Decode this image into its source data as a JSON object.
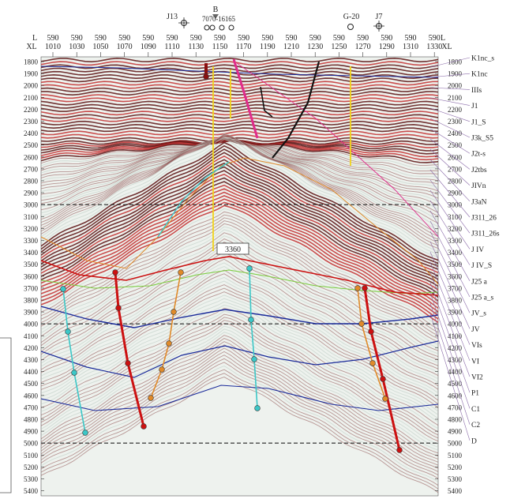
{
  "wells": [
    {
      "label": "J13"
    },
    {
      "label": "B"
    },
    {
      "label": "7070-16165"
    },
    {
      "label": "G-20"
    },
    {
      "label": "J7"
    }
  ],
  "header": {
    "left_top": "L",
    "left_bottom": "XL",
    "right_top": "L",
    "right_bottom": "XL"
  },
  "traces": [
    {
      "top": "590",
      "bottom": "1010"
    },
    {
      "top": "590",
      "bottom": "1030"
    },
    {
      "top": "590",
      "bottom": "1050"
    },
    {
      "top": "590",
      "bottom": "1070"
    },
    {
      "top": "590",
      "bottom": "1090"
    },
    {
      "top": "590",
      "bottom": "1110"
    },
    {
      "top": "590",
      "bottom": "1130"
    },
    {
      "top": "590",
      "bottom": "1150"
    },
    {
      "top": "590",
      "bottom": "1170"
    },
    {
      "top": "590",
      "bottom": "1190"
    },
    {
      "top": "590",
      "bottom": "1210"
    },
    {
      "top": "590",
      "bottom": "1230"
    },
    {
      "top": "590",
      "bottom": "1250"
    },
    {
      "top": "590",
      "bottom": "1270"
    },
    {
      "top": "590",
      "bottom": "1290"
    },
    {
      "top": "590",
      "bottom": "1310"
    },
    {
      "top": "590",
      "bottom": "1330"
    }
  ],
  "depths": [
    "1800",
    "1900",
    "2000",
    "2100",
    "2200",
    "2300",
    "2400",
    "2500",
    "2600",
    "2700",
    "2800",
    "2900",
    "3000",
    "3100",
    "3200",
    "3300",
    "3400",
    "3500",
    "3600",
    "3700",
    "3800",
    "3900",
    "4000",
    "4100",
    "4200",
    "4300",
    "4400",
    "4500",
    "4600",
    "4700",
    "4800",
    "4900",
    "5000",
    "5100",
    "5200",
    "5300",
    "5400"
  ],
  "horizons": [
    "K1nc_s",
    "K1nc",
    "IIIs",
    "J1",
    "J1_S",
    "J3k_S5",
    "J2t-s",
    "J2tbs",
    "JIVn",
    "J3aN",
    "J311_26",
    "J311_26s",
    "J IV",
    "J IV_S",
    "J25 a",
    "J25 a_s",
    "JV_s",
    "JV",
    "VIs",
    "VI",
    "VI2",
    "P1",
    "C1",
    "C2",
    "D"
  ],
  "depth_marker": "3360",
  "colors": {
    "red": "#cc1111",
    "cyan": "#3cc7c7",
    "orange": "#e08a2a",
    "navy": "#1a2a9a",
    "yellow": "#f2d41a",
    "magenta": "#e02c8c",
    "green": "#7acc3a"
  }
}
